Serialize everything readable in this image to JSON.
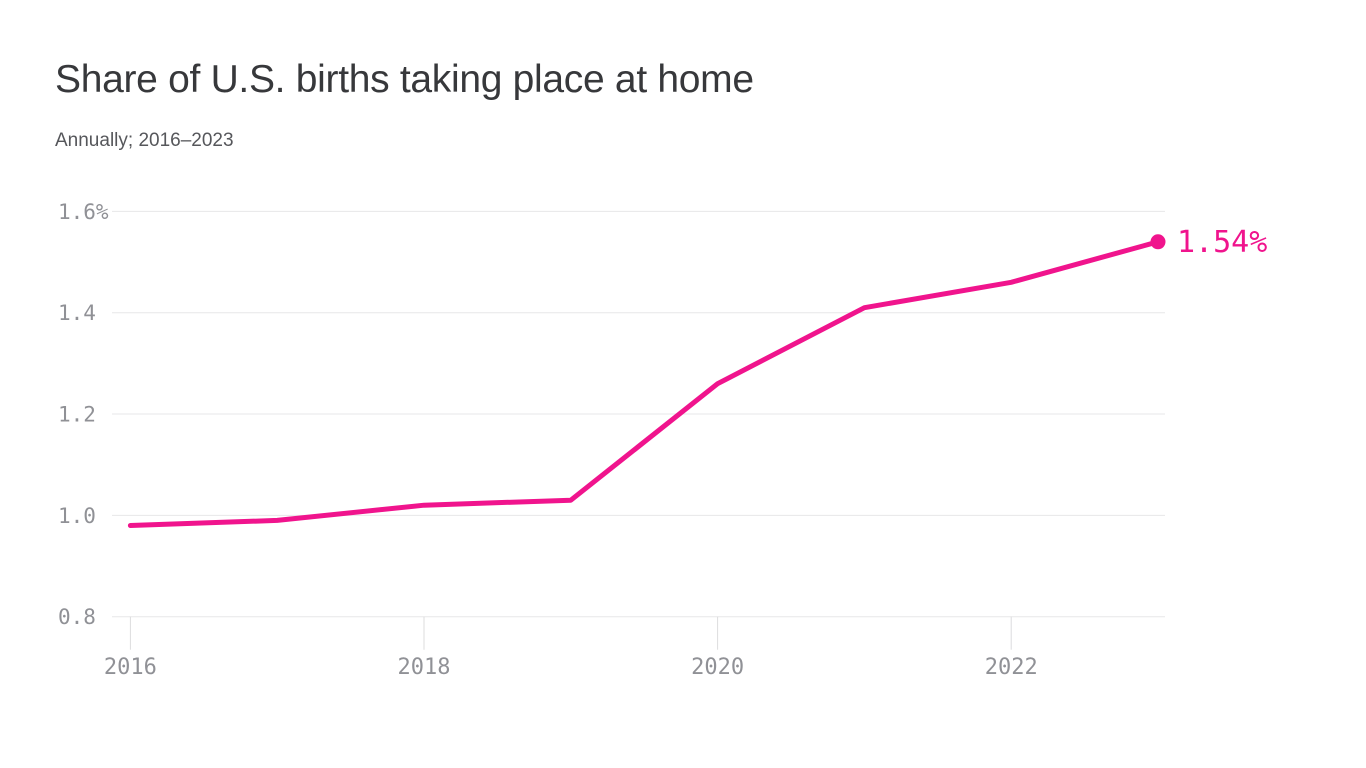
{
  "header": {
    "title": "Share of U.S. births taking place at home",
    "subtitle": "Annually; 2016–2023"
  },
  "colors": {
    "background": "#FFFFFF",
    "line": "#F0148D",
    "end_dot": "#F0148D",
    "end_label": "#F0148D",
    "gridline": "#E7E7E8",
    "axis_tick": "#DCDCDE",
    "axis_label": "#909196",
    "title": "#37383B",
    "subtitle": "#56575B"
  },
  "chart_data": {
    "type": "line",
    "title": "Share of U.S. births taking place at home",
    "subtitle": "Annually; 2016–2023",
    "x": [
      2016,
      2017,
      2018,
      2019,
      2020,
      2021,
      2022,
      2023
    ],
    "values": [
      0.98,
      0.99,
      1.02,
      1.03,
      1.26,
      1.41,
      1.46,
      1.54
    ],
    "unit": "%",
    "end_label": "1.54%",
    "xlabel": "",
    "ylabel": "",
    "xlim": [
      2016,
      2023
    ],
    "ylim": [
      0.8,
      1.6
    ],
    "grid": true,
    "legend": false,
    "y_ticks": [
      {
        "value": 1.6,
        "label": "1.6%"
      },
      {
        "value": 1.4,
        "label": "1.4"
      },
      {
        "value": 1.2,
        "label": "1.2"
      },
      {
        "value": 1.0,
        "label": "1.0"
      },
      {
        "value": 0.8,
        "label": "0.8"
      }
    ],
    "x_ticks": [
      {
        "value": 2016,
        "label": "2016"
      },
      {
        "value": 2018,
        "label": "2018"
      },
      {
        "value": 2020,
        "label": "2020"
      },
      {
        "value": 2022,
        "label": "2022"
      }
    ]
  }
}
